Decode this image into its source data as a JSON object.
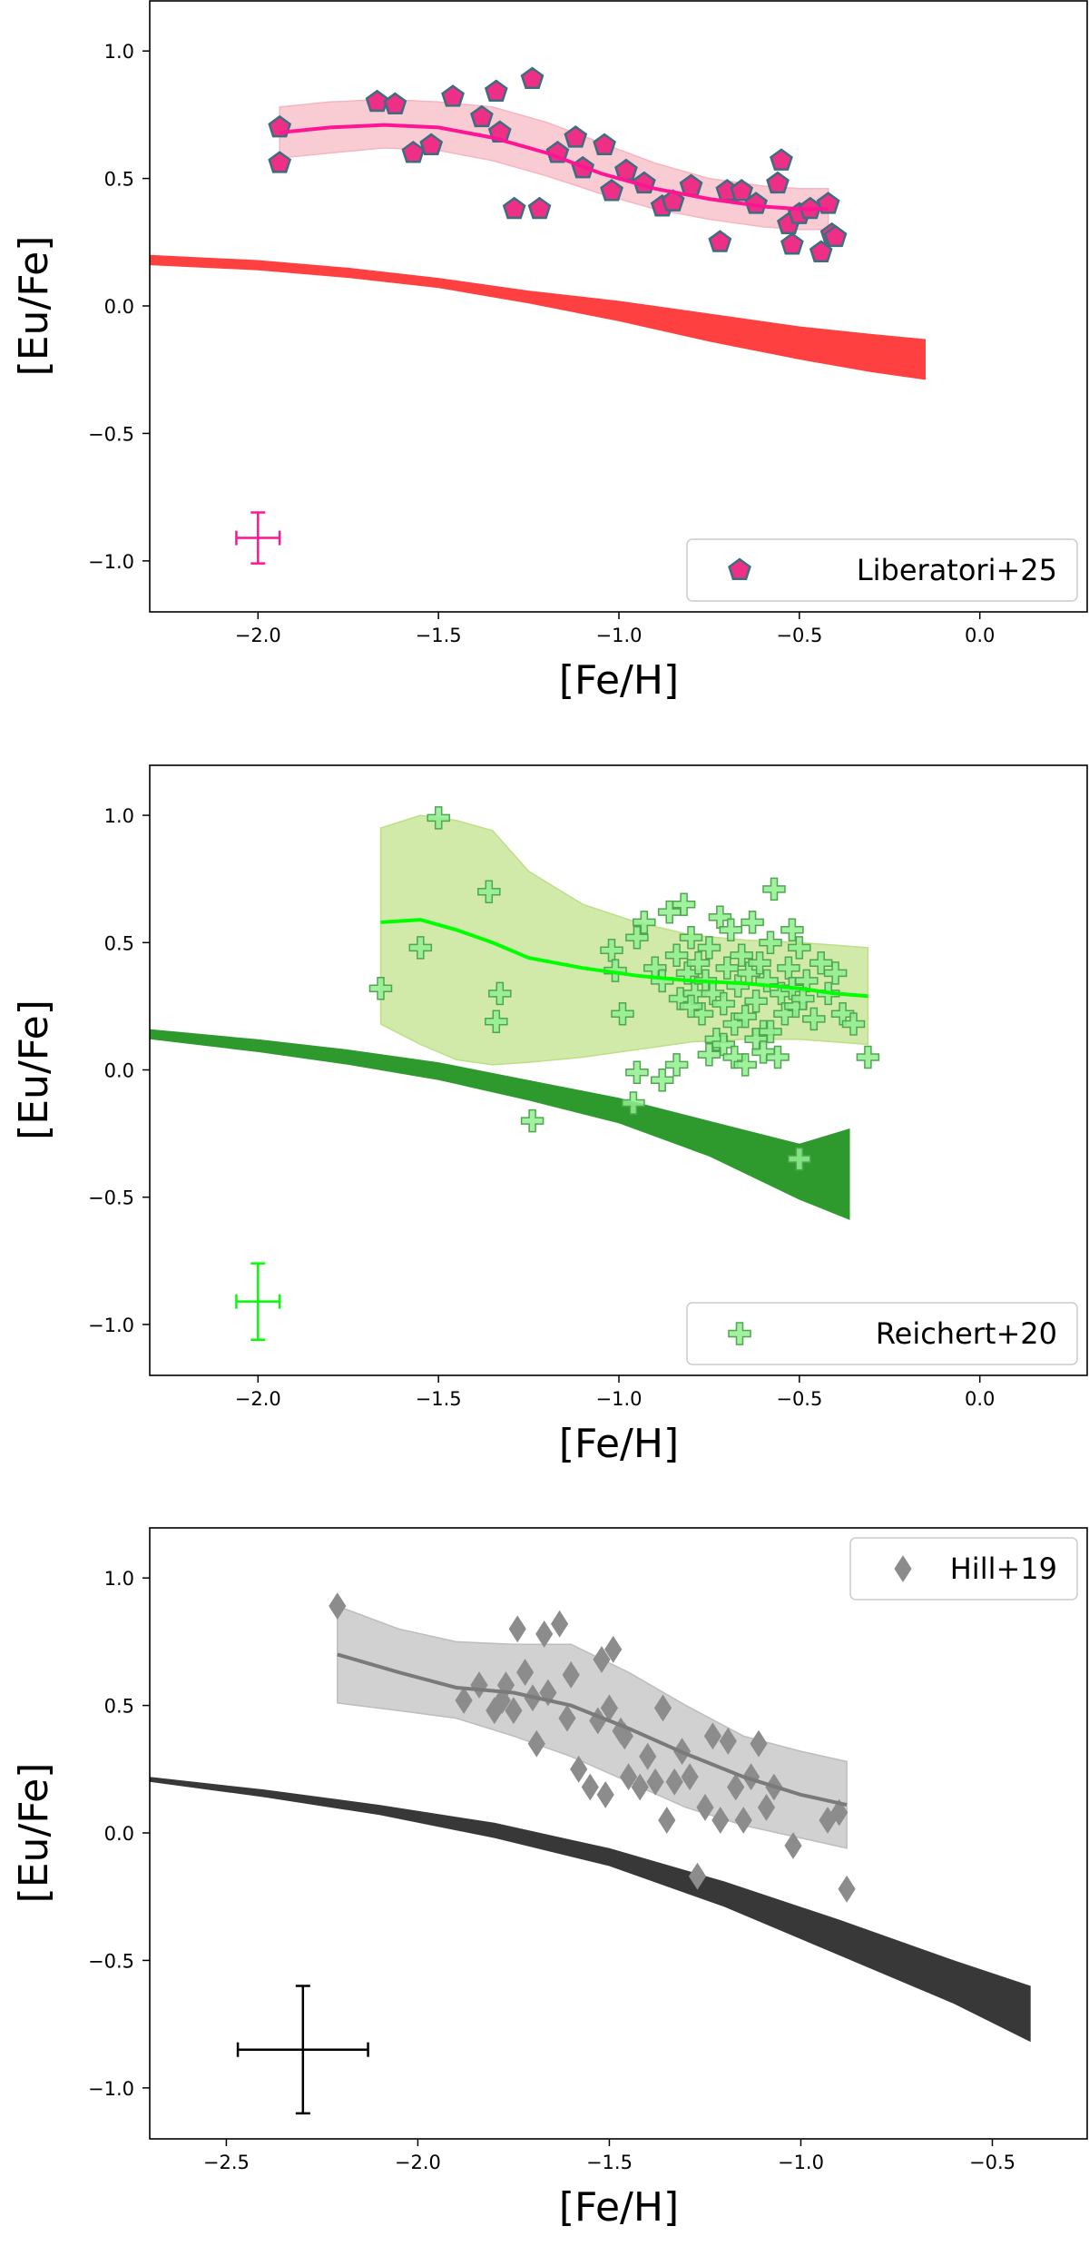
{
  "chart_data": [
    {
      "type": "scatter",
      "xlabel": "[Fe/H]",
      "ylabel": "[Eu/Fe]",
      "xlim": [
        -2.3,
        0.3
      ],
      "ylim": [
        -1.2,
        1.2
      ],
      "xticks": [
        -2.0,
        -1.5,
        -1.0,
        -0.5,
        0.0
      ],
      "xtick_labels": [
        "−2.0",
        "−1.5",
        "−1.0",
        "−0.5",
        "0.0"
      ],
      "yticks": [
        1.0,
        0.5,
        0.0,
        -0.5,
        -1.0
      ],
      "ytick_labels": [
        "1.0",
        "0.5",
        "0.0",
        "−0.5",
        "−1.0"
      ],
      "legend": {
        "label": "Liberatori+25",
        "marker": "pentagon",
        "position": "lower-right"
      },
      "colors": {
        "marker": "#ee2f86",
        "marker_edge": "#3c6e80",
        "trend": "#ff1493",
        "band": "#f6b5c0",
        "model": "#ff4040"
      },
      "series": [
        {
          "name": "Liberatori+25",
          "x": [
            -1.94,
            -1.94,
            -1.67,
            -1.62,
            -1.57,
            -1.52,
            -1.46,
            -1.38,
            -1.34,
            -1.33,
            -1.29,
            -1.24,
            -1.22,
            -1.17,
            -1.12,
            -1.1,
            -1.04,
            -1.02,
            -0.98,
            -0.93,
            -0.88,
            -0.85,
            -0.8,
            -0.72,
            -0.7,
            -0.66,
            -0.62,
            -0.56,
            -0.55,
            -0.53,
            -0.52,
            -0.5,
            -0.47,
            -0.44,
            -0.42,
            -0.41,
            -0.4
          ],
          "y": [
            0.7,
            0.56,
            0.8,
            0.79,
            0.6,
            0.63,
            0.82,
            0.74,
            0.84,
            0.68,
            0.38,
            0.89,
            0.38,
            0.6,
            0.66,
            0.54,
            0.63,
            0.45,
            0.53,
            0.48,
            0.39,
            0.41,
            0.47,
            0.25,
            0.45,
            0.45,
            0.4,
            0.48,
            0.57,
            0.32,
            0.24,
            0.36,
            0.38,
            0.21,
            0.4,
            0.28,
            0.27
          ]
        }
      ],
      "trend_line": {
        "x": [
          -1.94,
          -1.8,
          -1.65,
          -1.5,
          -1.35,
          -1.2,
          -1.05,
          -0.9,
          -0.75,
          -0.6,
          -0.5,
          -0.42
        ],
        "y": [
          0.68,
          0.7,
          0.71,
          0.7,
          0.66,
          0.6,
          0.52,
          0.46,
          0.42,
          0.39,
          0.38,
          0.38
        ]
      },
      "trend_band": {
        "x": [
          -1.94,
          -1.8,
          -1.65,
          -1.5,
          -1.35,
          -1.2,
          -1.05,
          -0.9,
          -0.75,
          -0.6,
          -0.5,
          -0.42
        ],
        "upper": [
          0.78,
          0.8,
          0.81,
          0.8,
          0.78,
          0.72,
          0.64,
          0.56,
          0.5,
          0.47,
          0.46,
          0.46
        ],
        "lower": [
          0.58,
          0.6,
          0.62,
          0.61,
          0.57,
          0.51,
          0.44,
          0.38,
          0.34,
          0.31,
          0.3,
          0.3
        ]
      },
      "model_band": {
        "x": [
          -2.3,
          -2.0,
          -1.75,
          -1.5,
          -1.25,
          -1.0,
          -0.75,
          -0.5,
          -0.3,
          -0.15
        ],
        "upper": [
          0.2,
          0.18,
          0.15,
          0.11,
          0.06,
          0.02,
          -0.03,
          -0.08,
          -0.11,
          -0.13
        ],
        "lower": [
          0.16,
          0.14,
          0.11,
          0.07,
          0.01,
          -0.06,
          -0.14,
          -0.21,
          -0.26,
          -0.29
        ]
      },
      "error_bar": {
        "x": -2.0,
        "y": -0.91,
        "xerr": 0.06,
        "yerr": 0.1,
        "color": "#ff1493"
      }
    },
    {
      "type": "scatter",
      "xlabel": "[Fe/H]",
      "ylabel": "[Eu/Fe]",
      "xlim": [
        -2.3,
        0.3
      ],
      "ylim": [
        -1.2,
        1.2
      ],
      "xticks": [
        -2.0,
        -1.5,
        -1.0,
        -0.5,
        0.0
      ],
      "xtick_labels": [
        "−2.0",
        "−1.5",
        "−1.0",
        "−0.5",
        "0.0"
      ],
      "yticks": [
        1.0,
        0.5,
        0.0,
        -0.5,
        -1.0
      ],
      "ytick_labels": [
        "1.0",
        "0.5",
        "0.0",
        "−0.5",
        "−1.0"
      ],
      "legend": {
        "label": "Reichert+20",
        "marker": "plus",
        "position": "lower-right"
      },
      "colors": {
        "marker": "#90ee90",
        "marker_edge": "#4fa64f",
        "trend": "#00ff00",
        "band": "#bde085",
        "model": "#2e9a2e"
      },
      "series": [
        {
          "name": "Reichert+20",
          "x": [
            -1.66,
            -1.55,
            -1.5,
            -1.36,
            -1.33,
            -1.34,
            -1.24,
            -1.02,
            -1.01,
            -0.99,
            -0.96,
            -0.95,
            -0.93,
            -0.9,
            -0.88,
            -0.86,
            -0.84,
            -0.83,
            -0.82,
            -0.81,
            -0.8,
            -0.79,
            -0.78,
            -0.77,
            -0.76,
            -0.75,
            -0.74,
            -0.73,
            -0.72,
            -0.71,
            -0.7,
            -0.69,
            -0.68,
            -0.67,
            -0.66,
            -0.65,
            -0.64,
            -0.63,
            -0.62,
            -0.61,
            -0.6,
            -0.59,
            -0.58,
            -0.57,
            -0.55,
            -0.54,
            -0.53,
            -0.52,
            -0.51,
            -0.5,
            -0.48,
            -0.46,
            -0.44,
            -0.42,
            -0.4,
            -0.38,
            -0.35,
            -0.31,
            -0.88,
            -0.84,
            -0.8,
            -0.75,
            -0.71,
            -0.68,
            -0.65,
            -0.62,
            -0.6,
            -0.58,
            -0.56,
            -0.52,
            -0.49,
            -0.95,
            -0.5
          ],
          "y": [
            0.32,
            0.48,
            0.99,
            0.7,
            0.3,
            0.19,
            -0.2,
            0.47,
            0.39,
            0.22,
            -0.13,
            0.52,
            0.58,
            0.4,
            0.35,
            0.62,
            0.45,
            0.28,
            0.65,
            0.38,
            0.52,
            0.3,
            0.42,
            0.22,
            0.35,
            0.48,
            0.3,
            0.12,
            0.6,
            0.26,
            0.4,
            0.55,
            0.18,
            0.33,
            0.45,
            0.21,
            0.38,
            0.58,
            0.27,
            0.42,
            0.15,
            0.35,
            0.5,
            0.71,
            0.3,
            0.22,
            0.4,
            0.55,
            0.25,
            0.48,
            0.35,
            0.2,
            0.42,
            0.3,
            0.38,
            0.22,
            0.18,
            0.05,
            -0.04,
            0.02,
            0.25,
            0.06,
            0.1,
            0.05,
            0.02,
            0.12,
            0.07,
            0.15,
            0.05,
            0.32,
            0.28,
            -0.01,
            -0.35
          ]
        }
      ],
      "trend_line": {
        "x": [
          -1.66,
          -1.55,
          -1.45,
          -1.35,
          -1.25,
          -1.1,
          -0.95,
          -0.8,
          -0.65,
          -0.5,
          -0.4,
          -0.31
        ],
        "y": [
          0.58,
          0.59,
          0.55,
          0.5,
          0.44,
          0.4,
          0.37,
          0.35,
          0.34,
          0.32,
          0.3,
          0.29
        ]
      },
      "trend_band": {
        "x": [
          -1.66,
          -1.55,
          -1.45,
          -1.35,
          -1.25,
          -1.1,
          -0.95,
          -0.8,
          -0.65,
          -0.5,
          -0.4,
          -0.31
        ],
        "upper": [
          0.95,
          1.0,
          0.98,
          0.94,
          0.78,
          0.65,
          0.58,
          0.53,
          0.51,
          0.5,
          0.49,
          0.48
        ],
        "lower": [
          0.18,
          0.1,
          0.04,
          0.02,
          0.03,
          0.05,
          0.08,
          0.11,
          0.12,
          0.12,
          0.11,
          0.1
        ]
      },
      "model_band": {
        "x": [
          -2.3,
          -2.0,
          -1.75,
          -1.5,
          -1.25,
          -1.0,
          -0.75,
          -0.5,
          -0.36
        ],
        "upper": [
          0.16,
          0.12,
          0.08,
          0.03,
          -0.04,
          -0.11,
          -0.2,
          -0.29,
          -0.23
        ],
        "lower": [
          0.12,
          0.07,
          0.02,
          -0.04,
          -0.12,
          -0.21,
          -0.34,
          -0.51,
          -0.59
        ]
      },
      "error_bar": {
        "x": -2.0,
        "y": -0.91,
        "xerr": 0.06,
        "yerr": 0.15,
        "color": "#00ff00"
      }
    },
    {
      "type": "scatter",
      "xlabel": "[Fe/H]",
      "ylabel": "[Eu/Fe]",
      "xlim": [
        -2.7,
        -0.25
      ],
      "ylim": [
        -1.2,
        1.2
      ],
      "xticks": [
        -2.5,
        -2.0,
        -1.5,
        -1.0,
        -0.5
      ],
      "xtick_labels": [
        "−2.5",
        "−2.0",
        "−1.5",
        "−1.0",
        "−0.5"
      ],
      "yticks": [
        1.0,
        0.5,
        0.0,
        -0.5,
        -1.0
      ],
      "ytick_labels": [
        "1.0",
        "0.5",
        "0.0",
        "−0.5",
        "−1.0"
      ],
      "legend": {
        "label": "Hill+19",
        "marker": "diamond",
        "position": "upper-right"
      },
      "colors": {
        "marker": "#8c8c8c",
        "marker_edge": "#8c8c8c",
        "trend": "#7a7a7a",
        "band": "#bdbdbd",
        "model": "#383838"
      },
      "series": [
        {
          "name": "Hill+19",
          "x": [
            -2.21,
            -1.88,
            -1.84,
            -1.8,
            -1.78,
            -1.77,
            -1.75,
            -1.74,
            -1.72,
            -1.7,
            -1.69,
            -1.67,
            -1.66,
            -1.63,
            -1.61,
            -1.6,
            -1.58,
            -1.55,
            -1.53,
            -1.52,
            -1.51,
            -1.5,
            -1.49,
            -1.47,
            -1.46,
            -1.45,
            -1.42,
            -1.4,
            -1.38,
            -1.36,
            -1.35,
            -1.33,
            -1.31,
            -1.29,
            -1.27,
            -1.25,
            -1.23,
            -1.21,
            -1.19,
            -1.17,
            -1.15,
            -1.13,
            -1.11,
            -1.09,
            -1.07,
            -1.02,
            -0.93,
            -0.9,
            -0.88
          ],
          "y": [
            0.89,
            0.52,
            0.58,
            0.48,
            0.52,
            0.58,
            0.48,
            0.8,
            0.63,
            0.53,
            0.35,
            0.78,
            0.55,
            0.82,
            0.45,
            0.62,
            0.25,
            0.18,
            0.44,
            0.68,
            0.15,
            0.49,
            0.72,
            0.4,
            0.38,
            0.22,
            0.18,
            0.3,
            0.2,
            0.49,
            0.05,
            0.2,
            0.32,
            0.22,
            -0.17,
            0.1,
            0.38,
            0.05,
            0.36,
            0.18,
            0.05,
            0.22,
            0.35,
            0.1,
            0.18,
            -0.05,
            0.05,
            0.08,
            -0.22
          ]
        }
      ],
      "trend_line": {
        "x": [
          -2.21,
          -2.05,
          -1.9,
          -1.75,
          -1.6,
          -1.45,
          -1.3,
          -1.15,
          -1.0,
          -0.88
        ],
        "y": [
          0.7,
          0.63,
          0.57,
          0.55,
          0.5,
          0.41,
          0.31,
          0.22,
          0.15,
          0.11
        ]
      },
      "trend_band": {
        "x": [
          -2.21,
          -2.05,
          -1.9,
          -1.75,
          -1.6,
          -1.45,
          -1.3,
          -1.15,
          -1.0,
          -0.88
        ],
        "upper": [
          0.89,
          0.8,
          0.75,
          0.74,
          0.74,
          0.63,
          0.5,
          0.38,
          0.32,
          0.28
        ],
        "lower": [
          0.51,
          0.48,
          0.45,
          0.38,
          0.3,
          0.2,
          0.1,
          0.03,
          -0.02,
          -0.06
        ]
      },
      "model_band": {
        "x": [
          -2.7,
          -2.4,
          -2.1,
          -1.8,
          -1.5,
          -1.2,
          -0.9,
          -0.6,
          -0.4
        ],
        "upper": [
          0.22,
          0.17,
          0.11,
          0.04,
          -0.06,
          -0.19,
          -0.34,
          -0.5,
          -0.6
        ],
        "lower": [
          0.2,
          0.14,
          0.07,
          -0.02,
          -0.13,
          -0.29,
          -0.48,
          -0.67,
          -0.82
        ]
      },
      "error_bar": {
        "x": -2.3,
        "y": -0.85,
        "xerr": 0.17,
        "yerr": 0.25,
        "color": "#000000"
      }
    }
  ]
}
